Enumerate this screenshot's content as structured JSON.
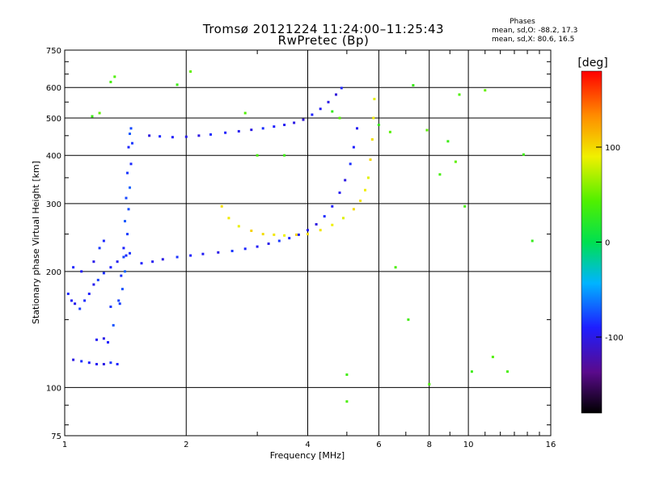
{
  "header": {
    "title_line1": "Tromsø 20121224 11:24:00–11:25:43",
    "title_line2": "RwPretec (Bp)",
    "phase_heading": "Phases",
    "phase_o": "mean, sd,O: -88.2, 17.3",
    "phase_x": "mean, sd,X:  80.6, 16.5"
  },
  "colorbar": {
    "label": "[deg]",
    "tick_labels": [
      "100",
      "0",
      "-100"
    ],
    "ticks": [
      100,
      0,
      -100
    ],
    "range": [
      -180,
      180
    ]
  },
  "chart_data": {
    "type": "scatter",
    "title": "Tromsø 20121224 11:24:00–11:25:43",
    "subtitle": "RwPretec (Bp)",
    "xlabel": "Frequency [MHz]",
    "ylabel": "Stationary phase Virtual Height [km]",
    "x_scale": "log",
    "y_scale": "log",
    "xlim": [
      1,
      16
    ],
    "ylim": [
      75,
      750
    ],
    "x_ticks": [
      1,
      2,
      4,
      6,
      8,
      10,
      16
    ],
    "x_tick_labels": [
      "1",
      "2",
      "4",
      "6",
      "8",
      "10",
      "16"
    ],
    "y_ticks": [
      75,
      100,
      200,
      300,
      400,
      500,
      600,
      750
    ],
    "y_tick_labels": [
      "75",
      "100",
      "200",
      "300",
      "400",
      "500",
      "600",
      "750"
    ],
    "grid": true,
    "color_scale": "phase [deg], -180 (black) to 180 (red)",
    "series": [
      {
        "points": [
          [
            1.28,
            131
          ],
          [
            1.32,
            145
          ],
          [
            1.36,
            168
          ],
          [
            1.38,
            195
          ],
          [
            1.4,
            230
          ],
          [
            1.41,
            270
          ],
          [
            1.42,
            310
          ],
          [
            1.43,
            360
          ],
          [
            1.44,
            420
          ],
          [
            1.45,
            455
          ],
          [
            1.46,
            470
          ],
          [
            1.47,
            430
          ],
          [
            1.46,
            380
          ],
          [
            1.45,
            330
          ],
          [
            1.44,
            290
          ],
          [
            1.43,
            250
          ],
          [
            1.42,
            220
          ],
          [
            1.41,
            200
          ],
          [
            1.39,
            180
          ],
          [
            1.37,
            165
          ]
        ],
        "phase": -80
      },
      {
        "points": [
          [
            1.02,
            175
          ],
          [
            1.04,
            168
          ],
          [
            1.06,
            165
          ],
          [
            1.09,
            160
          ],
          [
            1.12,
            168
          ],
          [
            1.15,
            175
          ],
          [
            1.18,
            185
          ],
          [
            1.21,
            190
          ],
          [
            1.25,
            198
          ],
          [
            1.3,
            205
          ],
          [
            1.35,
            212
          ],
          [
            1.4,
            218
          ],
          [
            1.45,
            223
          ]
        ],
        "phase": -88
      },
      {
        "points": [
          [
            1.05,
            118
          ],
          [
            1.1,
            117
          ],
          [
            1.15,
            116
          ],
          [
            1.2,
            115
          ],
          [
            1.25,
            115
          ],
          [
            1.3,
            116
          ],
          [
            1.35,
            115
          ],
          [
            1.2,
            133
          ],
          [
            1.25,
            134
          ],
          [
            1.3,
            162
          ],
          [
            1.05,
            205
          ],
          [
            1.1,
            200
          ],
          [
            1.18,
            212
          ],
          [
            1.22,
            230
          ],
          [
            1.25,
            240
          ]
        ],
        "phase": -92
      },
      {
        "points": [
          [
            1.55,
            210
          ],
          [
            1.65,
            212
          ],
          [
            1.75,
            215
          ],
          [
            1.9,
            218
          ],
          [
            2.05,
            220
          ],
          [
            2.2,
            222
          ],
          [
            2.4,
            224
          ],
          [
            2.6,
            226
          ],
          [
            2.8,
            229
          ],
          [
            3.0,
            232
          ],
          [
            3.2,
            236
          ],
          [
            3.4,
            240
          ],
          [
            3.6,
            244
          ],
          [
            3.8,
            249
          ],
          [
            4.0,
            256
          ],
          [
            4.2,
            265
          ],
          [
            4.4,
            278
          ],
          [
            4.6,
            295
          ],
          [
            4.8,
            320
          ],
          [
            4.95,
            345
          ],
          [
            5.1,
            380
          ],
          [
            5.2,
            420
          ],
          [
            5.3,
            470
          ]
        ],
        "phase": -92
      },
      {
        "points": [
          [
            1.62,
            450
          ],
          [
            1.72,
            448
          ],
          [
            1.85,
            446
          ],
          [
            2.0,
            447
          ],
          [
            2.15,
            450
          ],
          [
            2.3,
            453
          ],
          [
            2.5,
            458
          ],
          [
            2.7,
            462
          ],
          [
            2.9,
            466
          ],
          [
            3.1,
            470
          ],
          [
            3.3,
            475
          ],
          [
            3.5,
            480
          ],
          [
            3.7,
            486
          ],
          [
            3.9,
            495
          ],
          [
            4.1,
            510
          ],
          [
            4.3,
            528
          ],
          [
            4.5,
            550
          ],
          [
            4.7,
            575
          ],
          [
            4.85,
            598
          ]
        ],
        "phase": -95
      },
      {
        "points": [
          [
            2.45,
            295
          ],
          [
            2.55,
            275
          ],
          [
            2.7,
            262
          ],
          [
            2.9,
            255
          ],
          [
            3.1,
            250
          ],
          [
            3.3,
            249
          ],
          [
            3.5,
            248
          ],
          [
            3.75,
            249
          ],
          [
            4.0,
            250
          ],
          [
            4.3,
            256
          ],
          [
            4.6,
            264
          ],
          [
            4.9,
            275
          ],
          [
            5.2,
            290
          ],
          [
            5.4,
            305
          ],
          [
            5.55,
            325
          ],
          [
            5.65,
            350
          ],
          [
            5.72,
            390
          ],
          [
            5.78,
            440
          ],
          [
            5.82,
            500
          ],
          [
            5.85,
            560
          ]
        ],
        "phase": 95
      },
      {
        "points": [
          [
            1.17,
            505
          ],
          [
            1.22,
            515
          ],
          [
            1.33,
            640
          ],
          [
            1.3,
            620
          ],
          [
            1.9,
            610
          ],
          [
            2.05,
            660
          ],
          [
            2.8,
            515
          ],
          [
            3.0,
            400
          ],
          [
            3.5,
            400
          ],
          [
            4.6,
            520
          ],
          [
            4.8,
            500
          ],
          [
            5.0,
            92
          ],
          [
            5.0,
            108
          ],
          [
            6.0,
            480
          ],
          [
            6.4,
            460
          ],
          [
            6.6,
            205
          ],
          [
            7.1,
            150
          ],
          [
            7.3,
            608
          ],
          [
            7.9,
            465
          ],
          [
            8.0,
            102
          ],
          [
            8.5,
            357
          ],
          [
            8.9,
            435
          ],
          [
            9.3,
            385
          ],
          [
            9.5,
            575
          ],
          [
            9.8,
            295
          ],
          [
            10.2,
            110
          ],
          [
            11.0,
            590
          ],
          [
            11.5,
            120
          ],
          [
            12.5,
            110
          ],
          [
            13.7,
            402
          ],
          [
            14.4,
            240
          ]
        ],
        "phase": 40
      }
    ]
  }
}
